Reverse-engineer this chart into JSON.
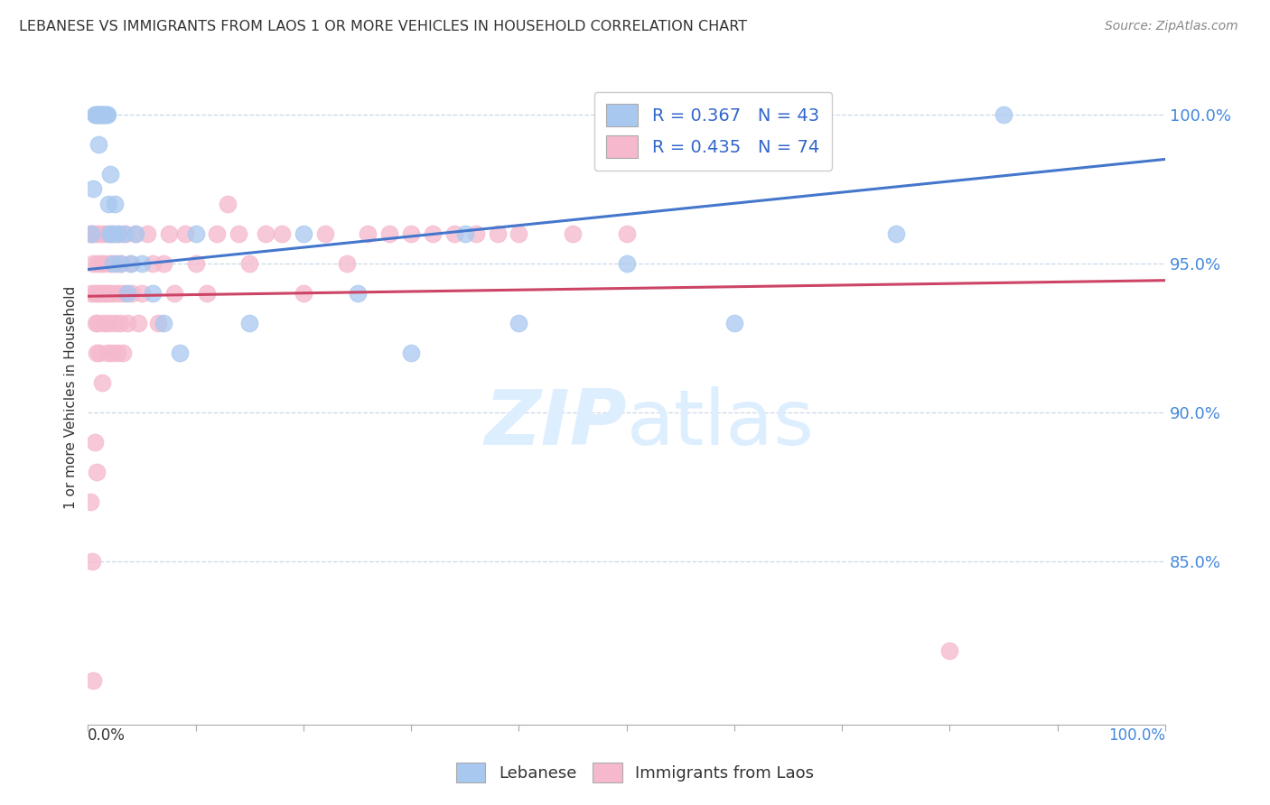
{
  "title": "LEBANESE VS IMMIGRANTS FROM LAOS 1 OR MORE VEHICLES IN HOUSEHOLD CORRELATION CHART",
  "source": "Source: ZipAtlas.com",
  "ylabel": "1 or more Vehicles in Household",
  "ytick_labels": [
    "85.0%",
    "90.0%",
    "95.0%",
    "100.0%"
  ],
  "ytick_values": [
    0.85,
    0.9,
    0.95,
    1.0
  ],
  "blue_color": "#a8c8f0",
  "pink_color": "#f5b8cc",
  "blue_line_color": "#4477cc",
  "pink_line_color": "#cc4466",
  "blue_R": 0.367,
  "pink_R": 0.435,
  "blue_N": 43,
  "pink_N": 74,
  "xlim": [
    0.0,
    1.0
  ],
  "ylim": [
    0.795,
    1.015
  ],
  "watermark_color": "#ddeeff",
  "blue_scatter_x": [
    0.003,
    0.005,
    0.006,
    0.007,
    0.008,
    0.009,
    0.01,
    0.01,
    0.011,
    0.012,
    0.013,
    0.014,
    0.015,
    0.016,
    0.017,
    0.018,
    0.019,
    0.02,
    0.021,
    0.022,
    0.023,
    0.025,
    0.027,
    0.03,
    0.033,
    0.037,
    0.04,
    0.044,
    0.05,
    0.06,
    0.07,
    0.085,
    0.1,
    0.15,
    0.2,
    0.25,
    0.3,
    0.35,
    0.4,
    0.5,
    0.6,
    0.75,
    0.85
  ],
  "blue_scatter_y": [
    0.96,
    0.975,
    1.0,
    1.0,
    1.0,
    1.0,
    1.0,
    0.99,
    1.0,
    1.0,
    1.0,
    1.0,
    1.0,
    1.0,
    1.0,
    1.0,
    0.97,
    0.96,
    0.98,
    0.96,
    0.95,
    0.97,
    0.96,
    0.95,
    0.96,
    0.94,
    0.95,
    0.96,
    0.95,
    0.94,
    0.93,
    0.92,
    0.96,
    0.93,
    0.96,
    0.94,
    0.92,
    0.96,
    0.93,
    0.95,
    0.93,
    0.96,
    1.0
  ],
  "pink_scatter_x": [
    0.002,
    0.003,
    0.004,
    0.005,
    0.006,
    0.007,
    0.007,
    0.008,
    0.008,
    0.009,
    0.009,
    0.01,
    0.01,
    0.011,
    0.012,
    0.013,
    0.013,
    0.014,
    0.015,
    0.015,
    0.016,
    0.017,
    0.018,
    0.018,
    0.019,
    0.02,
    0.021,
    0.022,
    0.023,
    0.024,
    0.025,
    0.026,
    0.027,
    0.028,
    0.029,
    0.03,
    0.031,
    0.032,
    0.033,
    0.035,
    0.037,
    0.039,
    0.041,
    0.044,
    0.047,
    0.05,
    0.055,
    0.06,
    0.065,
    0.07,
    0.075,
    0.08,
    0.09,
    0.1,
    0.11,
    0.12,
    0.13,
    0.14,
    0.15,
    0.165,
    0.18,
    0.2,
    0.22,
    0.24,
    0.26,
    0.28,
    0.3,
    0.32,
    0.34,
    0.36,
    0.38,
    0.4,
    0.45,
    0.5
  ],
  "pink_scatter_y": [
    0.96,
    0.94,
    0.96,
    0.95,
    0.94,
    0.93,
    0.96,
    0.92,
    0.94,
    0.95,
    0.93,
    0.96,
    0.94,
    0.92,
    0.95,
    0.94,
    0.91,
    0.96,
    0.95,
    0.93,
    0.94,
    0.96,
    0.92,
    0.94,
    0.93,
    0.95,
    0.94,
    0.92,
    0.96,
    0.94,
    0.93,
    0.95,
    0.92,
    0.96,
    0.94,
    0.93,
    0.95,
    0.92,
    0.94,
    0.96,
    0.93,
    0.95,
    0.94,
    0.96,
    0.93,
    0.94,
    0.96,
    0.95,
    0.93,
    0.95,
    0.96,
    0.94,
    0.96,
    0.95,
    0.94,
    0.96,
    0.97,
    0.96,
    0.95,
    0.96,
    0.96,
    0.94,
    0.96,
    0.95,
    0.96,
    0.96,
    0.96,
    0.96,
    0.96,
    0.96,
    0.96,
    0.96,
    0.96,
    0.96
  ],
  "pink_scatter_extra_x": [
    0.002,
    0.004,
    0.006,
    0.008,
    0.005,
    0.8
  ],
  "pink_scatter_extra_y": [
    0.87,
    0.85,
    0.89,
    0.88,
    0.81,
    0.82
  ]
}
